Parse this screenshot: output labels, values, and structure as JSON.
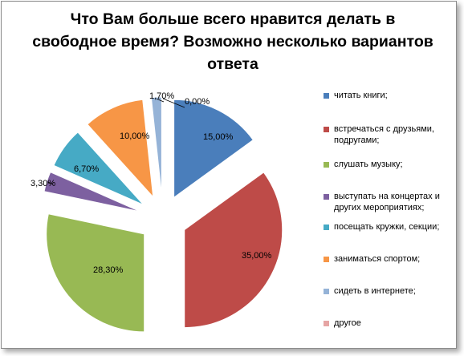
{
  "chart_data": {
    "type": "pie",
    "title": "Что Вам больше всего нравится делать в свободное время? Возможно несколько вариантов ответа",
    "categories": [
      "читать книги;",
      "встречаться с друзьями, подругами;",
      "слушать музыку;",
      "выступать на концертах и других мероприятиях;",
      "посещать кружки, секции;",
      "заниматься спортом;",
      "сидеть в интернете;",
      "другое"
    ],
    "values": [
      15.0,
      35.0,
      28.3,
      3.3,
      6.7,
      10.0,
      1.7,
      0.0
    ],
    "data_labels": [
      "15,00%",
      "35,00%",
      "28,30%",
      "3,30%",
      "6,70%",
      "10,00%",
      "1,70%",
      "0,00%"
    ],
    "colors": [
      "#4a7ebb",
      "#be4b48",
      "#98b954",
      "#7d60a0",
      "#46aac5",
      "#f79646",
      "#95b3d7",
      "#e6a5a4"
    ],
    "legend_position": "right"
  }
}
